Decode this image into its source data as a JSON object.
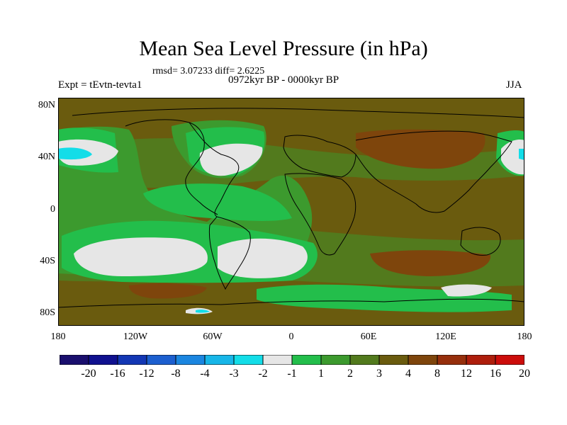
{
  "title": "Mean Sea Level Pressure (in hPa)",
  "stats": "rmsd= 3.07233 diff= 2.6225",
  "experiment": "Expt = tEvtn-tevta1",
  "period": "0972kyr BP - 0000kyr BP",
  "season": "JJA",
  "lat_labels": [
    "80N",
    "40N",
    "0",
    "40S",
    "80S"
  ],
  "lon_labels": [
    "180",
    "120W",
    "60W",
    "0",
    "60E",
    "120E",
    "180"
  ],
  "colorbar": {
    "colors": [
      "#1a0f6e",
      "#10118f",
      "#1337b4",
      "#1c5fcf",
      "#1b86e0",
      "#17b6e8",
      "#13dde8",
      "#e6e6e6",
      "#23be4b",
      "#3c9a2e",
      "#527a1d",
      "#6a5b0e",
      "#7e450c",
      "#962f0c",
      "#ae1e0c",
      "#cc0d0b"
    ],
    "labels": [
      "-20",
      "-16",
      "-12",
      "-8",
      "-4",
      "-3",
      "-2",
      "-1",
      "1",
      "2",
      "3",
      "4",
      "8",
      "12",
      "16",
      "20"
    ]
  }
}
